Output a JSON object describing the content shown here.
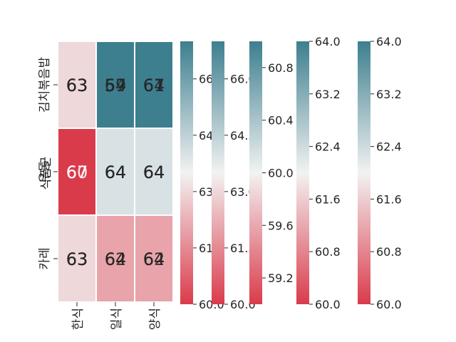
{
  "chart_data": {
    "type": "heatmap",
    "title": "",
    "xlabel": "",
    "ylabel": "식품군",
    "rows": [
      "김치볶음밥",
      "우동",
      "카레"
    ],
    "columns": [
      "한식",
      "일식",
      "양식"
    ],
    "annotation_layers": [
      [
        [
          63,
          64,
          64
        ],
        [
          60,
          64,
          64
        ],
        [
          63,
          62,
          62
        ]
      ],
      [
        [
          63,
          57,
          67
        ],
        [
          67,
          64,
          64
        ],
        [
          63,
          64,
          64
        ]
      ],
      [
        [
          63,
          59,
          61
        ],
        [
          67,
          64,
          64
        ],
        [
          63,
          64,
          64
        ]
      ]
    ],
    "cell_values": [
      [
        63,
        67,
        67
      ],
      [
        60,
        64,
        64
      ],
      [
        63,
        62,
        62
      ]
    ],
    "colormap": {
      "low": "#da3b4b",
      "mid": "#f2f2f2",
      "high": "#3d7f8f"
    },
    "colorbars": [
      {
        "range": [
          60,
          67
        ],
        "ticks": [
          "60.0",
          "61.5",
          "63.0",
          "64.5",
          "66.0"
        ]
      },
      {
        "range": [
          60,
          67
        ],
        "ticks": [
          "60.0",
          "61.5",
          "63.0",
          "64.5",
          "66.0"
        ]
      },
      {
        "range": [
          59,
          61
        ],
        "ticks": [
          "59.2",
          "59.6",
          "60.0",
          "60.4",
          "60.8"
        ]
      },
      {
        "range": [
          60,
          64
        ],
        "ticks": [
          "60.0",
          "60.8",
          "61.6",
          "62.4",
          "63.2",
          "64.0"
        ]
      },
      {
        "range": [
          60,
          64
        ],
        "ticks": [
          "60.0",
          "60.8",
          "61.6",
          "62.4",
          "63.2",
          "64.0"
        ]
      }
    ],
    "grid": false,
    "legend": "none"
  }
}
